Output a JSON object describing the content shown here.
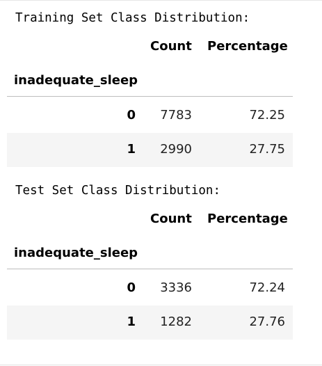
{
  "training": {
    "heading": "Training Set Class Distribution:",
    "columns": [
      "Count",
      "Percentage"
    ],
    "index_name": "inadequate_sleep",
    "rows": [
      {
        "index": "0",
        "count": "7783",
        "percentage": "72.25"
      },
      {
        "index": "1",
        "count": "2990",
        "percentage": "27.75"
      }
    ]
  },
  "test": {
    "heading": "Test Set Class Distribution:",
    "columns": [
      "Count",
      "Percentage"
    ],
    "index_name": "inadequate_sleep",
    "rows": [
      {
        "index": "0",
        "count": "3336",
        "percentage": "72.24"
      },
      {
        "index": "1",
        "count": "1282",
        "percentage": "27.76"
      }
    ]
  }
}
